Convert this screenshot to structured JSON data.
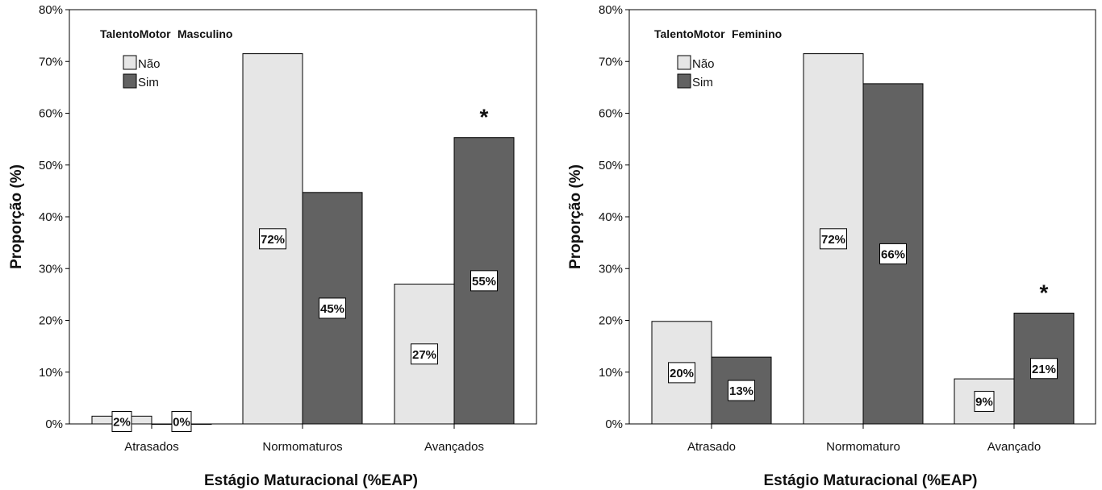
{
  "chart_data": [
    {
      "type": "bar",
      "legend_title": "TalentoMotor",
      "legend_subtitle": "Masculino",
      "categories": [
        "Atrasados",
        "Normomaturos",
        "Avançados"
      ],
      "series": [
        {
          "name": "Não",
          "values": [
            1.5,
            71.5,
            27.0
          ],
          "labels": [
            "2%",
            "72%",
            "27%"
          ],
          "color": "#e6e6e6"
        },
        {
          "name": "Sim",
          "values": [
            0.0,
            44.7,
            55.3
          ],
          "labels": [
            "0%",
            "45%",
            "55%"
          ],
          "color": "#626262"
        }
      ],
      "xlabel": "Estágio Maturacional (%EAP)",
      "ylabel": "Proporção (%)",
      "ylim": [
        0,
        80
      ],
      "yticks": [
        "0%",
        "10%",
        "20%",
        "30%",
        "40%",
        "50%",
        "60%",
        "70%",
        "80%"
      ],
      "annotations": [
        {
          "text": "*",
          "category": "Avançados",
          "series": "Sim"
        }
      ],
      "grid": false,
      "legend_position": "top-left"
    },
    {
      "type": "bar",
      "legend_title": "TalentoMotor",
      "legend_subtitle": "Feminino",
      "categories": [
        "Atrasado",
        "Normomaturo",
        "Avançado"
      ],
      "series": [
        {
          "name": "Não",
          "values": [
            19.8,
            71.5,
            8.7
          ],
          "labels": [
            "20%",
            "72%",
            "9%"
          ],
          "color": "#e6e6e6"
        },
        {
          "name": "Sim",
          "values": [
            12.9,
            65.7,
            21.4
          ],
          "labels": [
            "13%",
            "66%",
            "21%"
          ],
          "color": "#626262"
        }
      ],
      "xlabel": "Estágio Maturacional (%EAP)",
      "ylabel": "Proporção (%)",
      "ylim": [
        0,
        80
      ],
      "yticks": [
        "0%",
        "10%",
        "20%",
        "30%",
        "40%",
        "50%",
        "60%",
        "70%",
        "80%"
      ],
      "annotations": [
        {
          "text": "*",
          "category": "Avançado",
          "series": "Sim"
        }
      ],
      "grid": false,
      "legend_position": "top-left"
    }
  ]
}
